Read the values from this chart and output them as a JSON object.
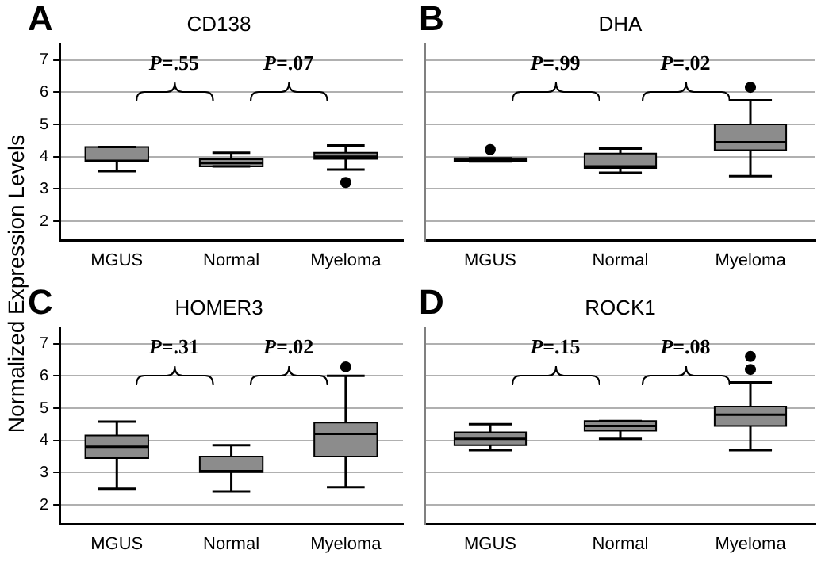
{
  "chart_data": [
    {
      "type": "box",
      "title": "CD138",
      "categories": [
        "MGUS",
        "Normal",
        "Myeloma"
      ],
      "color": "#8c8c8c",
      "ylim": [
        1.4,
        7.5
      ],
      "yticks": [
        2,
        3,
        4,
        5,
        6,
        7
      ],
      "grid": "y",
      "annotations": [
        "A",
        "P=.55",
        "P=.07"
      ],
      "boxes": [
        {
          "low": 3.55,
          "q1": 3.85,
          "median": 3.87,
          "q3": 4.3,
          "high": 4.3
        },
        {
          "low": 3.7,
          "q1": 3.7,
          "median": 3.8,
          "q3": 3.92,
          "high": 4.12
        },
        {
          "low": 3.6,
          "q1": 3.93,
          "median": 4.0,
          "q3": 4.12,
          "high": 4.35,
          "outliers": [
            3.2
          ]
        }
      ]
    },
    {
      "type": "box",
      "title": "DHA",
      "categories": [
        "MGUS",
        "Normal",
        "Myeloma"
      ],
      "color": "#8c8c8c",
      "ylim": [
        1.4,
        7.5
      ],
      "yticks": [
        2,
        3,
        4,
        5,
        6,
        7
      ],
      "grid": "y",
      "tick_labels": "x",
      "annotations": [
        "B",
        "P=.99",
        "P=.02"
      ],
      "boxes": [
        {
          "low": 3.85,
          "q1": 3.85,
          "median": 3.9,
          "q3": 3.95,
          "high": 3.95,
          "outliers": [
            4.22
          ]
        },
        {
          "low": 3.5,
          "q1": 3.65,
          "median": 3.7,
          "q3": 4.1,
          "high": 4.25
        },
        {
          "low": 3.4,
          "q1": 4.2,
          "median": 4.45,
          "q3": 5.0,
          "high": 5.75,
          "outliers": [
            6.15
          ]
        }
      ]
    },
    {
      "type": "box",
      "title": "HOMER3",
      "ylabel": "Normalized Expression Levels",
      "categories": [
        "MGUS",
        "Normal",
        "Myeloma"
      ],
      "color": "#8c8c8c",
      "ylim": [
        1.4,
        7.5
      ],
      "yticks": [
        2,
        3,
        4,
        5,
        6,
        7
      ],
      "grid": "y",
      "annotations": [
        "C",
        "P=.31",
        "P=.02"
      ],
      "boxes": [
        {
          "low": 2.5,
          "q1": 3.45,
          "median": 3.8,
          "q3": 4.15,
          "high": 4.58
        },
        {
          "low": 2.42,
          "q1": 3.02,
          "median": 3.05,
          "q3": 3.5,
          "high": 3.85
        },
        {
          "low": 2.55,
          "q1": 3.5,
          "median": 4.2,
          "q3": 4.55,
          "high": 6.0,
          "outliers": [
            6.28
          ]
        }
      ]
    },
    {
      "type": "box",
      "title": "ROCK1",
      "categories": [
        "MGUS",
        "Normal",
        "Myeloma"
      ],
      "color": "#8c8c8c",
      "ylim": [
        1.4,
        7.5
      ],
      "yticks": [
        2,
        3,
        4,
        5,
        6,
        7
      ],
      "grid": "y",
      "tick_labels": "x",
      "annotations": [
        "D",
        "P=.15",
        "P=.08"
      ],
      "boxes": [
        {
          "low": 3.7,
          "q1": 3.85,
          "median": 4.05,
          "q3": 4.25,
          "high": 4.5
        },
        {
          "low": 4.05,
          "q1": 4.3,
          "median": 4.45,
          "q3": 4.6,
          "high": 4.6
        },
        {
          "low": 3.7,
          "q1": 4.45,
          "median": 4.8,
          "q3": 5.05,
          "high": 5.8,
          "outliers": [
            6.2,
            6.6
          ]
        }
      ]
    }
  ]
}
